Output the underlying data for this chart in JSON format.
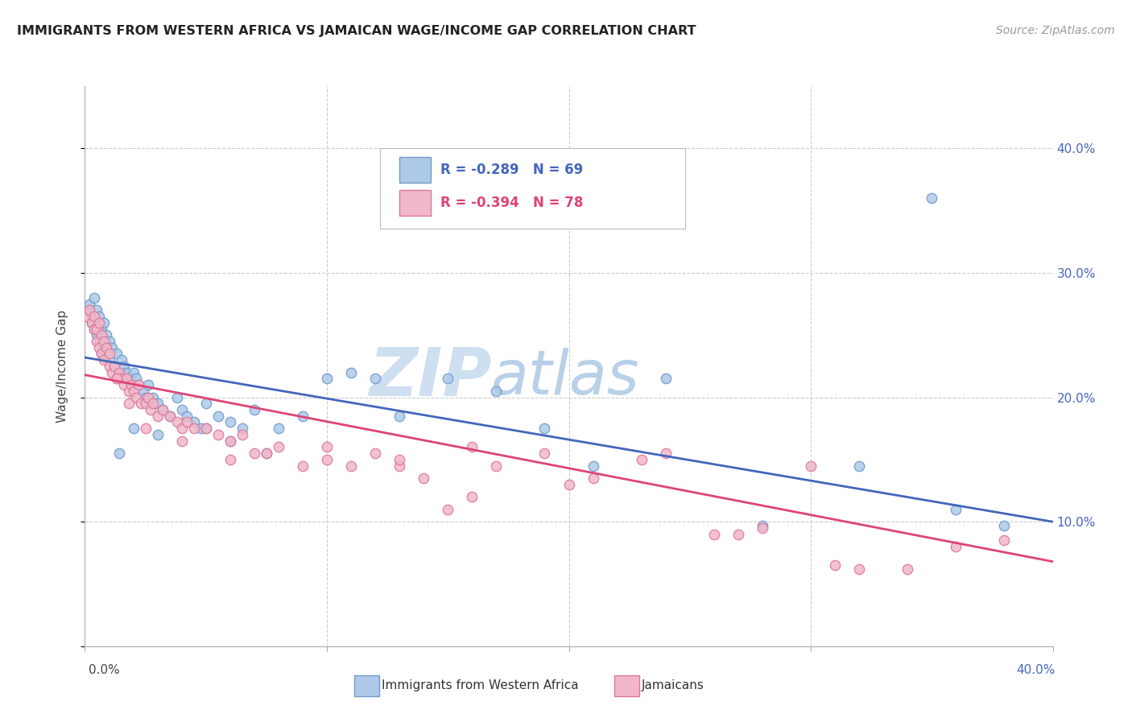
{
  "title": "IMMIGRANTS FROM WESTERN AFRICA VS JAMAICAN WAGE/INCOME GAP CORRELATION CHART",
  "source": "Source: ZipAtlas.com",
  "ylabel": "Wage/Income Gap",
  "xlim": [
    0.0,
    0.4
  ],
  "ylim": [
    0.0,
    0.45
  ],
  "blue_R": "-0.289",
  "blue_N": "69",
  "pink_R": "-0.394",
  "pink_N": "78",
  "legend_label_blue": "Immigrants from Western Africa",
  "legend_label_pink": "Jamaicans",
  "blue_scatter_x": [
    0.001,
    0.002,
    0.003,
    0.003,
    0.004,
    0.004,
    0.005,
    0.005,
    0.006,
    0.006,
    0.007,
    0.007,
    0.008,
    0.009,
    0.01,
    0.01,
    0.011,
    0.012,
    0.013,
    0.014,
    0.015,
    0.015,
    0.016,
    0.017,
    0.018,
    0.019,
    0.02,
    0.021,
    0.022,
    0.024,
    0.025,
    0.026,
    0.027,
    0.028,
    0.03,
    0.032,
    0.035,
    0.038,
    0.04,
    0.042,
    0.045,
    0.048,
    0.05,
    0.055,
    0.06,
    0.065,
    0.07,
    0.08,
    0.09,
    0.1,
    0.11,
    0.12,
    0.13,
    0.15,
    0.17,
    0.19,
    0.21,
    0.24,
    0.28,
    0.32,
    0.35,
    0.36,
    0.38,
    0.014,
    0.02,
    0.03,
    0.05,
    0.06,
    0.075
  ],
  "blue_scatter_y": [
    0.27,
    0.275,
    0.265,
    0.26,
    0.28,
    0.255,
    0.27,
    0.25,
    0.265,
    0.245,
    0.255,
    0.235,
    0.26,
    0.25,
    0.23,
    0.245,
    0.24,
    0.225,
    0.235,
    0.22,
    0.23,
    0.215,
    0.225,
    0.22,
    0.215,
    0.21,
    0.22,
    0.215,
    0.21,
    0.205,
    0.2,
    0.21,
    0.195,
    0.2,
    0.195,
    0.19,
    0.185,
    0.2,
    0.19,
    0.185,
    0.18,
    0.175,
    0.195,
    0.185,
    0.18,
    0.175,
    0.19,
    0.175,
    0.185,
    0.215,
    0.22,
    0.215,
    0.185,
    0.215,
    0.205,
    0.175,
    0.145,
    0.215,
    0.097,
    0.145,
    0.36,
    0.11,
    0.097,
    0.155,
    0.175,
    0.17,
    0.175,
    0.165,
    0.155
  ],
  "pink_scatter_x": [
    0.001,
    0.002,
    0.003,
    0.004,
    0.004,
    0.005,
    0.005,
    0.006,
    0.006,
    0.007,
    0.007,
    0.008,
    0.008,
    0.009,
    0.01,
    0.01,
    0.011,
    0.012,
    0.013,
    0.014,
    0.015,
    0.016,
    0.017,
    0.018,
    0.019,
    0.02,
    0.021,
    0.022,
    0.023,
    0.025,
    0.026,
    0.027,
    0.028,
    0.03,
    0.032,
    0.035,
    0.038,
    0.04,
    0.042,
    0.045,
    0.05,
    0.055,
    0.06,
    0.065,
    0.07,
    0.08,
    0.09,
    0.1,
    0.11,
    0.12,
    0.13,
    0.14,
    0.15,
    0.16,
    0.17,
    0.19,
    0.21,
    0.24,
    0.26,
    0.28,
    0.3,
    0.32,
    0.34,
    0.36,
    0.38,
    0.013,
    0.018,
    0.025,
    0.04,
    0.06,
    0.075,
    0.1,
    0.13,
    0.16,
    0.2,
    0.23,
    0.27,
    0.31
  ],
  "pink_scatter_y": [
    0.265,
    0.27,
    0.26,
    0.255,
    0.265,
    0.255,
    0.245,
    0.26,
    0.24,
    0.25,
    0.235,
    0.245,
    0.23,
    0.24,
    0.225,
    0.235,
    0.22,
    0.225,
    0.215,
    0.22,
    0.215,
    0.21,
    0.215,
    0.205,
    0.21,
    0.205,
    0.2,
    0.21,
    0.195,
    0.195,
    0.2,
    0.19,
    0.195,
    0.185,
    0.19,
    0.185,
    0.18,
    0.175,
    0.18,
    0.175,
    0.175,
    0.17,
    0.165,
    0.17,
    0.155,
    0.16,
    0.145,
    0.15,
    0.145,
    0.155,
    0.145,
    0.135,
    0.11,
    0.12,
    0.145,
    0.155,
    0.135,
    0.155,
    0.09,
    0.095,
    0.145,
    0.062,
    0.062,
    0.08,
    0.085,
    0.215,
    0.195,
    0.175,
    0.165,
    0.15,
    0.155,
    0.16,
    0.15,
    0.16,
    0.13,
    0.15,
    0.09,
    0.065
  ],
  "blue_line_x": [
    0.0,
    0.4
  ],
  "blue_line_y": [
    0.232,
    0.1
  ],
  "pink_line_x": [
    0.0,
    0.4
  ],
  "pink_line_y": [
    0.218,
    0.068
  ],
  "marker_size": 80,
  "blue_marker_facecolor": "#adc9e8",
  "blue_marker_edgecolor": "#7099cc",
  "pink_marker_facecolor": "#f0b8c8",
  "pink_marker_edgecolor": "#dd7799",
  "blue_line_color": "#4466bb",
  "pink_line_color": "#dd4477",
  "watermark_color": "#dce8f5",
  "background_color": "#ffffff",
  "grid_color": "#cccccc",
  "title_fontsize": 11.5,
  "source_fontsize": 10,
  "legend_fontsize": 12
}
